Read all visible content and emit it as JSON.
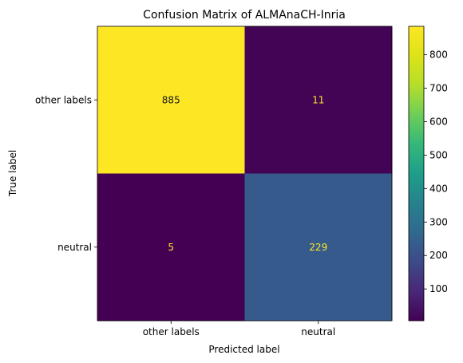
{
  "chart_data": {
    "type": "heatmap",
    "title": "Confusion Matrix of ALMAnaCH-Inria",
    "xlabel": "Predicted label",
    "ylabel": "True label",
    "x_categories": [
      "other labels",
      "neutral"
    ],
    "y_categories": [
      "other labels",
      "neutral"
    ],
    "values": [
      [
        885,
        11
      ],
      [
        5,
        229
      ]
    ],
    "colormap": "viridis",
    "colorbar": {
      "min": 5,
      "max": 885,
      "ticks": [
        100,
        200,
        300,
        400,
        500,
        600,
        700,
        800
      ]
    },
    "text_color_dark_cell": "#fde725",
    "text_color_light_cell": "#1a1a1a"
  }
}
